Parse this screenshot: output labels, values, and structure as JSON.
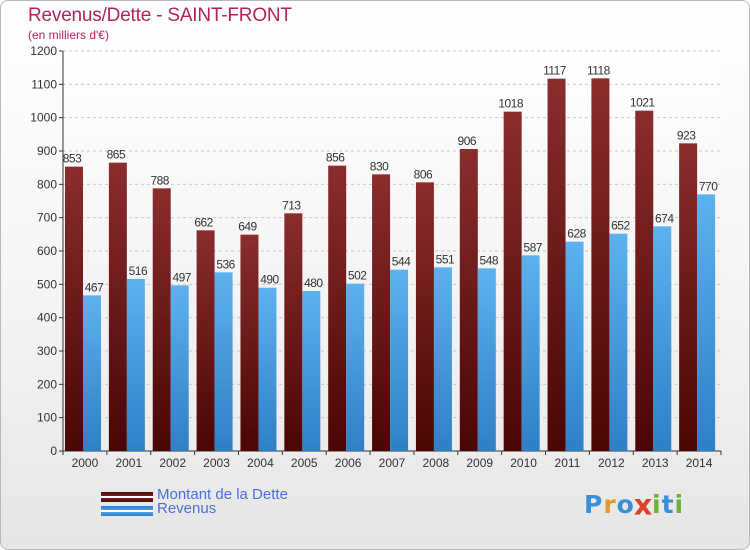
{
  "header": {
    "title": "Revenus/Dette - SAINT-FRONT",
    "subtitle": "(en milliers d'€)"
  },
  "legend": {
    "items": [
      {
        "label": "Montant de la Dette",
        "color": "#6e1c1c"
      },
      {
        "label": "Revenus",
        "color": "#4aa3e6"
      }
    ]
  },
  "logo": {
    "text": "Proxiti",
    "letters": [
      {
        "char": "P",
        "color": "#3c8fd6"
      },
      {
        "char": "r",
        "color": "#e39a2d"
      },
      {
        "char": "o",
        "color": "#3c8fd6"
      },
      {
        "char": "x",
        "color": "#d8432a"
      },
      {
        "char": "i",
        "color": "#6cb23a"
      },
      {
        "char": "t",
        "color": "#3c8fd6"
      },
      {
        "char": "i",
        "color": "#6cb23a"
      }
    ]
  },
  "chart_data": {
    "type": "bar",
    "title": "Revenus/Dette - SAINT-FRONT",
    "subtitle": "(en milliers d'€)",
    "categories": [
      "2000",
      "2001",
      "2002",
      "2003",
      "2004",
      "2005",
      "2006",
      "2007",
      "2008",
      "2009",
      "2010",
      "2011",
      "2012",
      "2013",
      "2014"
    ],
    "series": [
      {
        "name": "Montant de la Dette",
        "color": "#7a2121",
        "values": [
          853,
          865,
          788,
          662,
          649,
          713,
          856,
          830,
          806,
          906,
          1018,
          1117,
          1118,
          1021,
          923
        ]
      },
      {
        "name": "Revenus",
        "color": "#4aa3e6",
        "values": [
          467,
          516,
          497,
          536,
          490,
          480,
          502,
          544,
          551,
          548,
          587,
          628,
          652,
          674,
          770
        ]
      }
    ],
    "ylim": [
      0,
      1200
    ],
    "yticks": [
      0,
      100,
      200,
      300,
      400,
      500,
      600,
      700,
      800,
      900,
      1000,
      1100,
      1200
    ],
    "grid": true,
    "legend_position": "bottom-left"
  }
}
